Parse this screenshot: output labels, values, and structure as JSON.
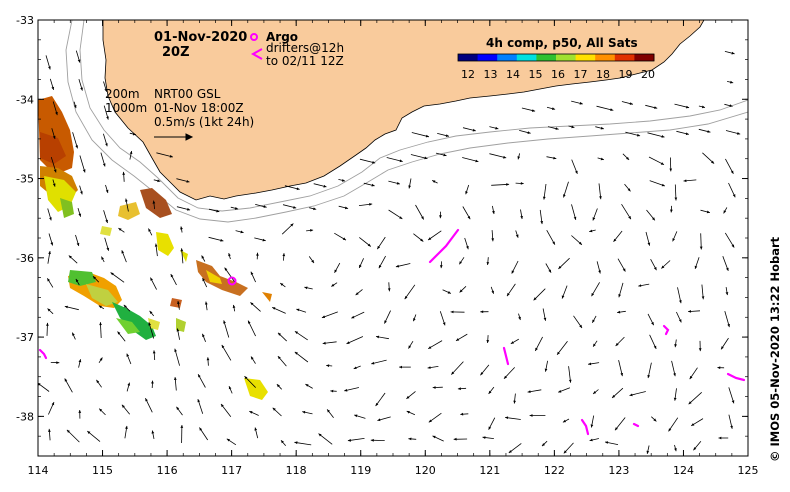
{
  "header": {
    "date": "01-Nov-2020",
    "hour": "20Z"
  },
  "legend": {
    "argo_label": "Argo",
    "drifters_line1": "drifters@12h",
    "drifters_line2": "to 02/11 12Z",
    "colorbar_title": "4h comp, p50, All Sats",
    "colorbar_ticks": [
      "12",
      "13",
      "14",
      "15",
      "16",
      "17",
      "18",
      "19",
      "20"
    ],
    "colorbar_colors": [
      "#00007f",
      "#0000ff",
      "#0080ff",
      "#00e0e0",
      "#30c030",
      "#a0e030",
      "#ffe000",
      "#ff9000",
      "#e03000",
      "#800000"
    ]
  },
  "annotations": {
    "depth1": "200m",
    "depth2": "1000m",
    "product": "NRT00 GSL",
    "time": "01-Nov 18:00Z",
    "scale": "0.5m/s (1kt 24h)"
  },
  "axes": {
    "lon_ticks": [
      "114",
      "115",
      "116",
      "117",
      "118",
      "119",
      "120",
      "121",
      "122",
      "123",
      "124",
      "125"
    ],
    "lat_ticks": [
      "-33",
      "-34",
      "-35",
      "-36",
      "-37",
      "-38"
    ],
    "lon_range": [
      114,
      125
    ],
    "lat_range": [
      -38.5,
      -33
    ]
  },
  "credit": "© IMOS 05-Nov-2020 13:22 Hobart",
  "colors": {
    "land": "#f9cb9c",
    "argo": "#ff00ff",
    "drifter": "#ff00ff",
    "contour": "#a0a0a0"
  }
}
